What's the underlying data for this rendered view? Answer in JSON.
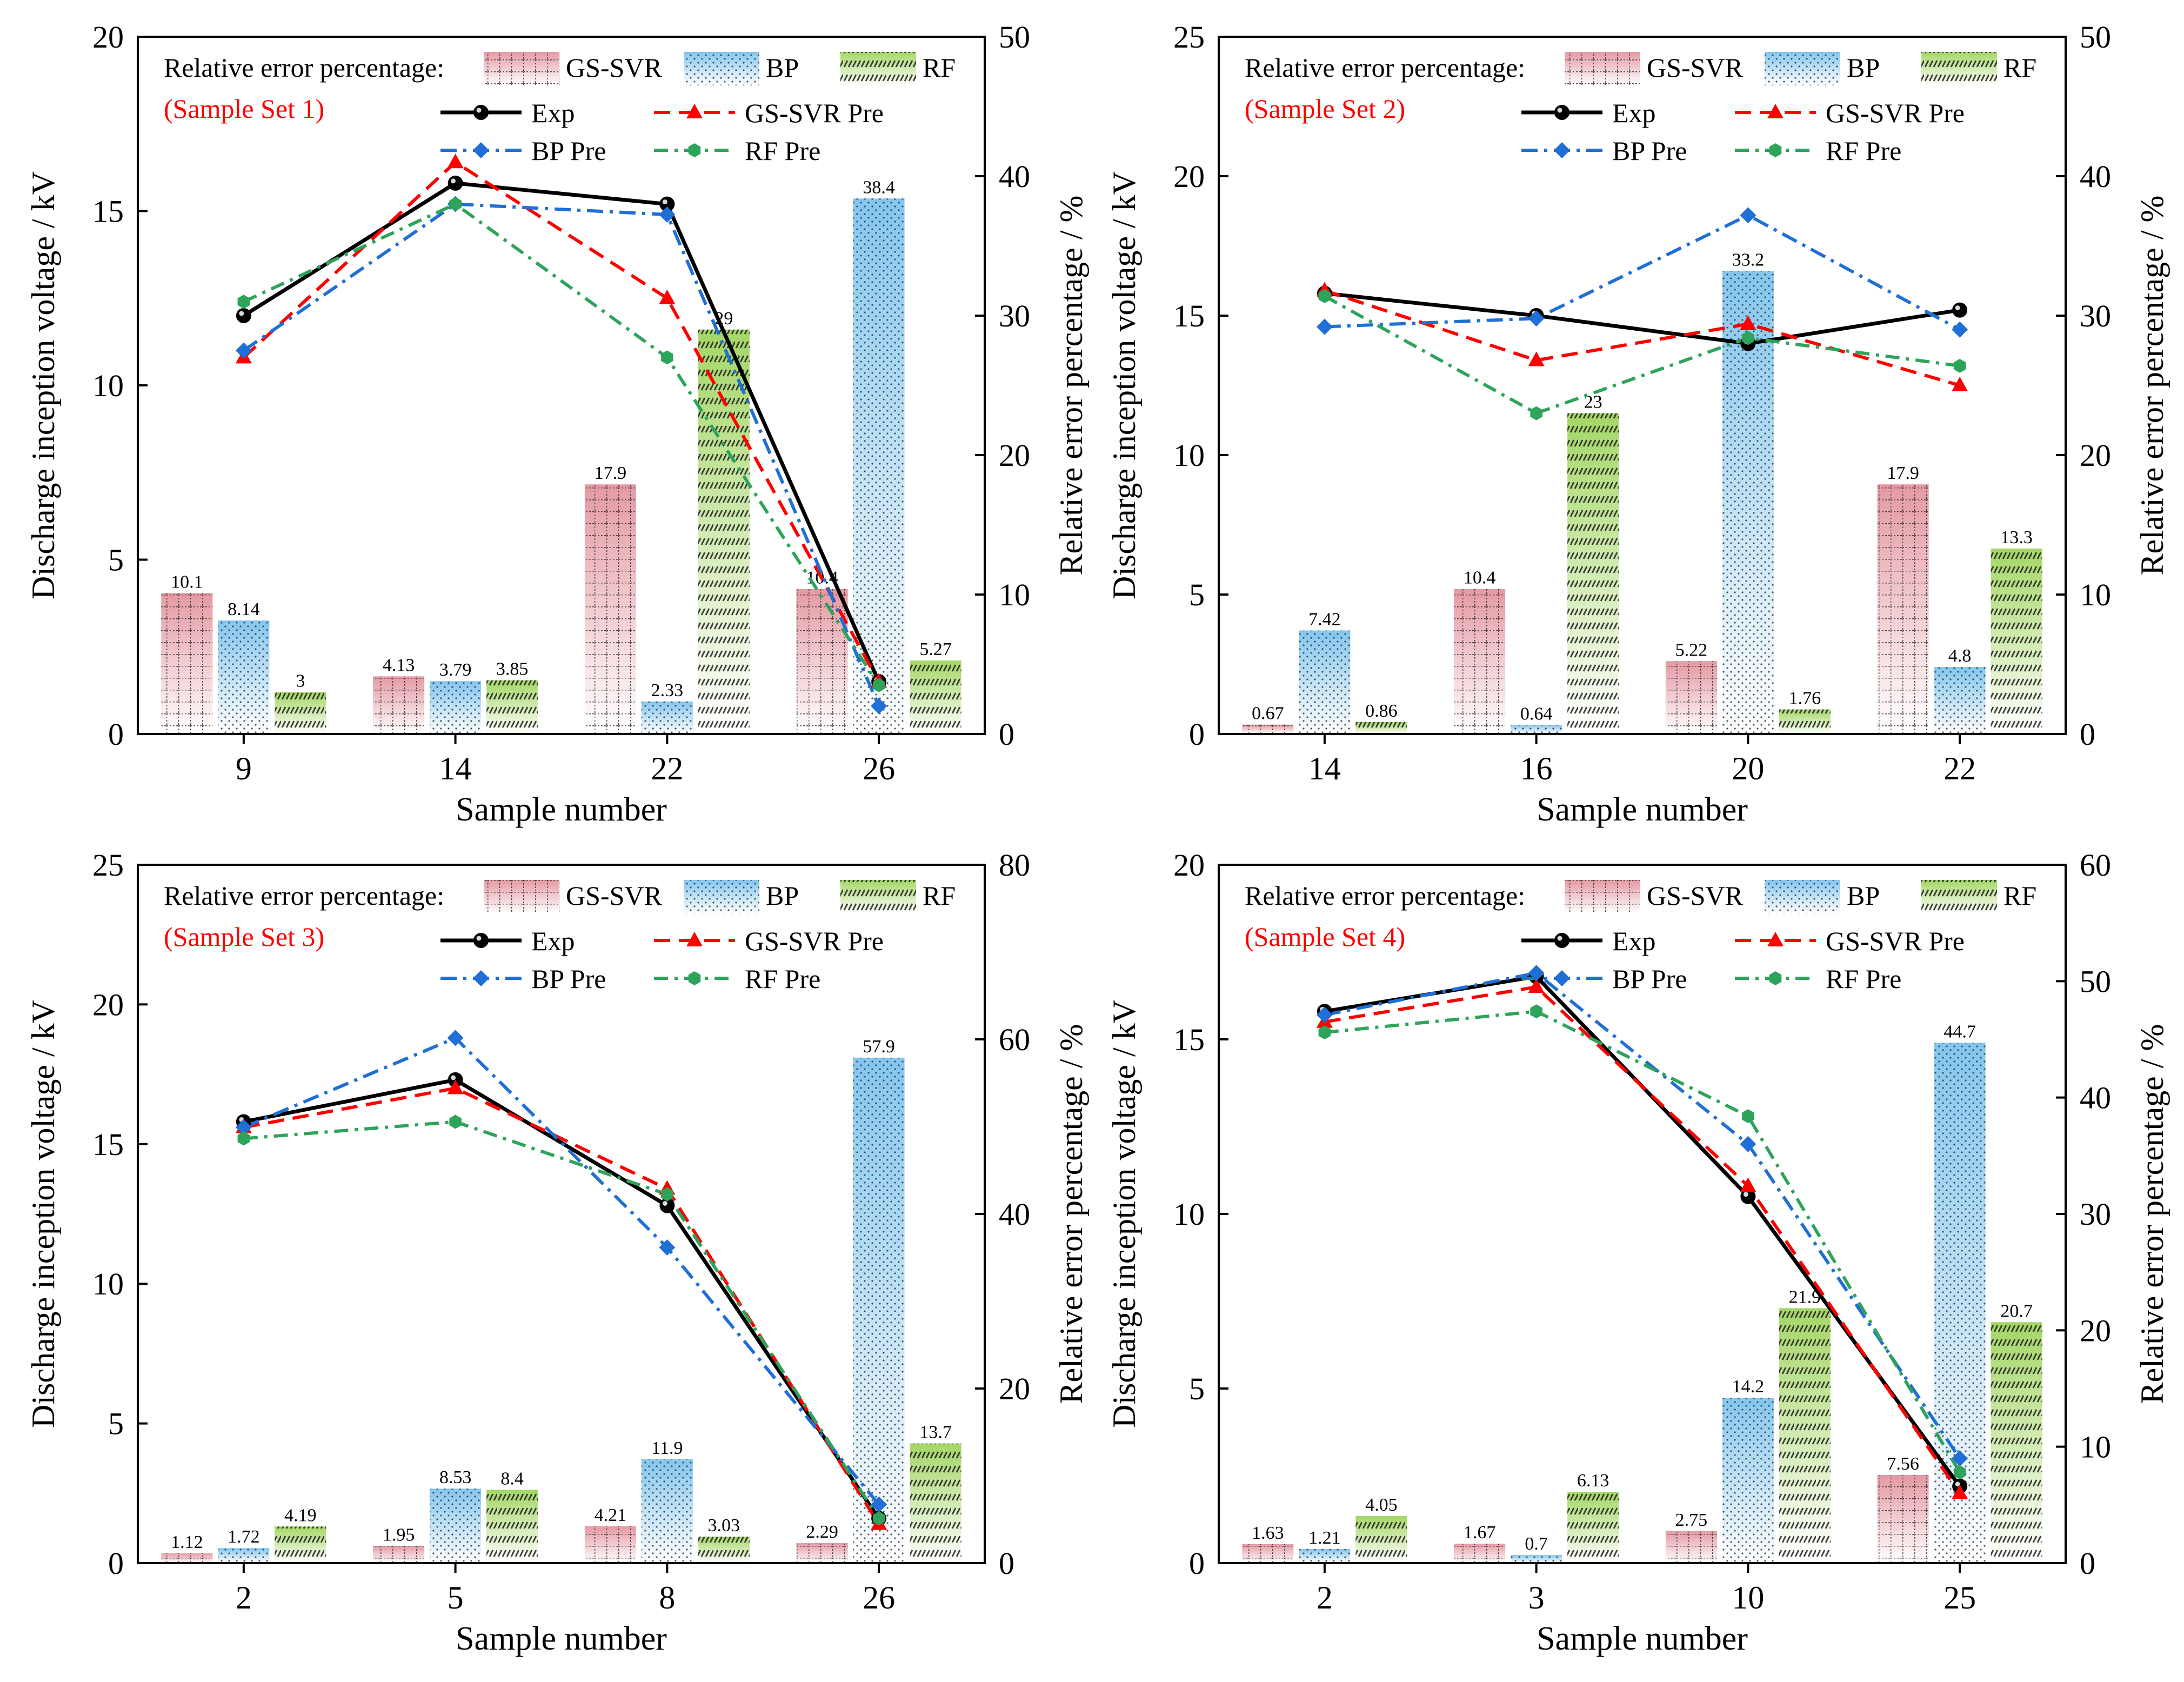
{
  "legend": {
    "bar_title": "Relative error percentage:",
    "bars": [
      "GS-SVR",
      "BP",
      "RF"
    ],
    "lines": [
      "Exp",
      "GS-SVR Pre",
      "BP Pre",
      "RF Pre"
    ]
  },
  "colors": {
    "exp": "#000000",
    "gssvr": "#ff0000",
    "bp": "#1f6fd6",
    "rf": "#2ea35a",
    "bar_gssvr": "#e8a0a8",
    "bar_bp": "#8ccbf0",
    "bar_rf": "#a8d86a",
    "annotation": "#ff0000"
  },
  "chart_data": [
    {
      "type": "bar+line",
      "annotation": "(Sample Set 1)",
      "xlabel": "Sample number",
      "ylabel_left": "Discharge inception voltage / kV",
      "ylabel_right": "Relative error percentage / %",
      "categories": [
        "9",
        "14",
        "22",
        "26"
      ],
      "ylim_left": [
        0,
        20
      ],
      "yticks_left": [
        0,
        5,
        10,
        15,
        20
      ],
      "ylim_right": [
        0,
        50
      ],
      "yticks_right": [
        0,
        10,
        20,
        30,
        40,
        50
      ],
      "bars": [
        {
          "name": "GS-SVR",
          "values": [
            10.1,
            4.13,
            17.9,
            10.4
          ],
          "labels": [
            "10.1",
            "4.13",
            "17.9",
            "10.4"
          ]
        },
        {
          "name": "BP",
          "values": [
            8.14,
            3.79,
            2.33,
            38.4
          ],
          "labels": [
            "8.14",
            "3.79",
            "2.33",
            "38.4"
          ]
        },
        {
          "name": "RF",
          "values": [
            3,
            3.85,
            29,
            5.27
          ],
          "labels": [
            "3",
            "3.85",
            "29",
            "5.27"
          ]
        }
      ],
      "lines": [
        {
          "name": "Exp",
          "values": [
            12.0,
            15.8,
            15.2,
            1.5
          ]
        },
        {
          "name": "GS-SVR Pre",
          "values": [
            10.8,
            16.4,
            12.5,
            1.5
          ]
        },
        {
          "name": "BP Pre",
          "values": [
            11.0,
            15.2,
            14.9,
            0.8
          ]
        },
        {
          "name": "RF Pre",
          "values": [
            12.4,
            15.2,
            10.8,
            1.4
          ]
        }
      ]
    },
    {
      "type": "bar+line",
      "annotation": "(Sample Set 2)",
      "xlabel": "Sample number",
      "ylabel_left": "Discharge inception voltage / kV",
      "ylabel_right": "Relative error percentage / %",
      "categories": [
        "14",
        "16",
        "20",
        "22"
      ],
      "ylim_left": [
        0,
        25
      ],
      "yticks_left": [
        0,
        5,
        10,
        15,
        20,
        25
      ],
      "ylim_right": [
        0,
        50
      ],
      "yticks_right": [
        0,
        10,
        20,
        30,
        40,
        50
      ],
      "bars": [
        {
          "name": "GS-SVR",
          "values": [
            0.67,
            10.4,
            5.22,
            17.9
          ],
          "labels": [
            "0.67",
            "10.4",
            "5.22",
            "17.9"
          ]
        },
        {
          "name": "BP",
          "values": [
            7.42,
            0.64,
            33.2,
            4.8
          ],
          "labels": [
            "7.42",
            "0.64",
            "33.2",
            "4.8"
          ]
        },
        {
          "name": "RF",
          "values": [
            0.86,
            23,
            1.76,
            13.3
          ],
          "labels": [
            "0.86",
            "23",
            "1.76",
            "13.3"
          ]
        }
      ],
      "lines": [
        {
          "name": "Exp",
          "values": [
            15.8,
            15.0,
            14.0,
            15.2
          ]
        },
        {
          "name": "GS-SVR Pre",
          "values": [
            15.9,
            13.4,
            14.7,
            12.5
          ]
        },
        {
          "name": "BP Pre",
          "values": [
            14.6,
            14.9,
            18.6,
            14.5
          ]
        },
        {
          "name": "RF Pre",
          "values": [
            15.7,
            11.5,
            14.2,
            13.2
          ]
        }
      ]
    },
    {
      "type": "bar+line",
      "annotation": "(Sample Set 3)",
      "xlabel": "Sample number",
      "ylabel_left": "Discharge inception voltage / kV",
      "ylabel_right": "Relative error percentage / %",
      "categories": [
        "2",
        "5",
        "8",
        "26"
      ],
      "ylim_left": [
        0,
        25
      ],
      "yticks_left": [
        0,
        5,
        10,
        15,
        20,
        25
      ],
      "ylim_right": [
        0,
        80
      ],
      "yticks_right": [
        0,
        20,
        40,
        60,
        80
      ],
      "bars": [
        {
          "name": "GS-SVR",
          "values": [
            1.12,
            1.95,
            4.21,
            2.29
          ],
          "labels": [
            "1.12",
            "1.95",
            "4.21",
            "2.29"
          ]
        },
        {
          "name": "BP",
          "values": [
            1.72,
            8.53,
            11.9,
            57.9
          ],
          "labels": [
            "1.72",
            "8.53",
            "11.9",
            "57.9"
          ]
        },
        {
          "name": "RF",
          "values": [
            4.19,
            8.4,
            3.03,
            13.7
          ],
          "labels": [
            "4.19",
            "8.4",
            "3.03",
            "13.7"
          ]
        }
      ],
      "lines": [
        {
          "name": "Exp",
          "values": [
            15.8,
            17.3,
            12.8,
            1.6
          ]
        },
        {
          "name": "GS-SVR Pre",
          "values": [
            15.6,
            17.0,
            13.4,
            1.4
          ]
        },
        {
          "name": "BP Pre",
          "values": [
            15.6,
            18.8,
            11.3,
            2.1
          ]
        },
        {
          "name": "RF Pre",
          "values": [
            15.2,
            15.8,
            13.2,
            1.6
          ]
        }
      ]
    },
    {
      "type": "bar+line",
      "annotation": "(Sample Set 4)",
      "xlabel": "Sample number",
      "ylabel_left": "Discharge inception voltage / kV",
      "ylabel_right": "Relative error percentage / %",
      "categories": [
        "2",
        "3",
        "10",
        "25"
      ],
      "ylim_left": [
        0,
        20
      ],
      "yticks_left": [
        0,
        5,
        10,
        15,
        20
      ],
      "ylim_right": [
        0,
        60
      ],
      "yticks_right": [
        0,
        10,
        20,
        30,
        40,
        50,
        60
      ],
      "bars": [
        {
          "name": "GS-SVR",
          "values": [
            1.63,
            1.67,
            2.75,
            7.56
          ],
          "labels": [
            "1.63",
            "1.67",
            "2.75",
            "7.56"
          ]
        },
        {
          "name": "BP",
          "values": [
            1.21,
            0.7,
            14.2,
            44.7
          ],
          "labels": [
            "1.21",
            "0.7",
            "14.2",
            "44.7"
          ]
        },
        {
          "name": "RF",
          "values": [
            4.05,
            6.13,
            21.9,
            20.7
          ],
          "labels": [
            "4.05",
            "6.13",
            "21.9",
            "20.7"
          ]
        }
      ],
      "lines": [
        {
          "name": "Exp",
          "values": [
            15.8,
            16.8,
            10.5,
            2.2
          ]
        },
        {
          "name": "GS-SVR Pre",
          "values": [
            15.5,
            16.5,
            10.8,
            2.0
          ]
        },
        {
          "name": "BP Pre",
          "values": [
            15.7,
            16.9,
            12.0,
            3.0
          ]
        },
        {
          "name": "RF Pre",
          "values": [
            15.2,
            15.8,
            12.8,
            2.6
          ]
        }
      ]
    }
  ]
}
